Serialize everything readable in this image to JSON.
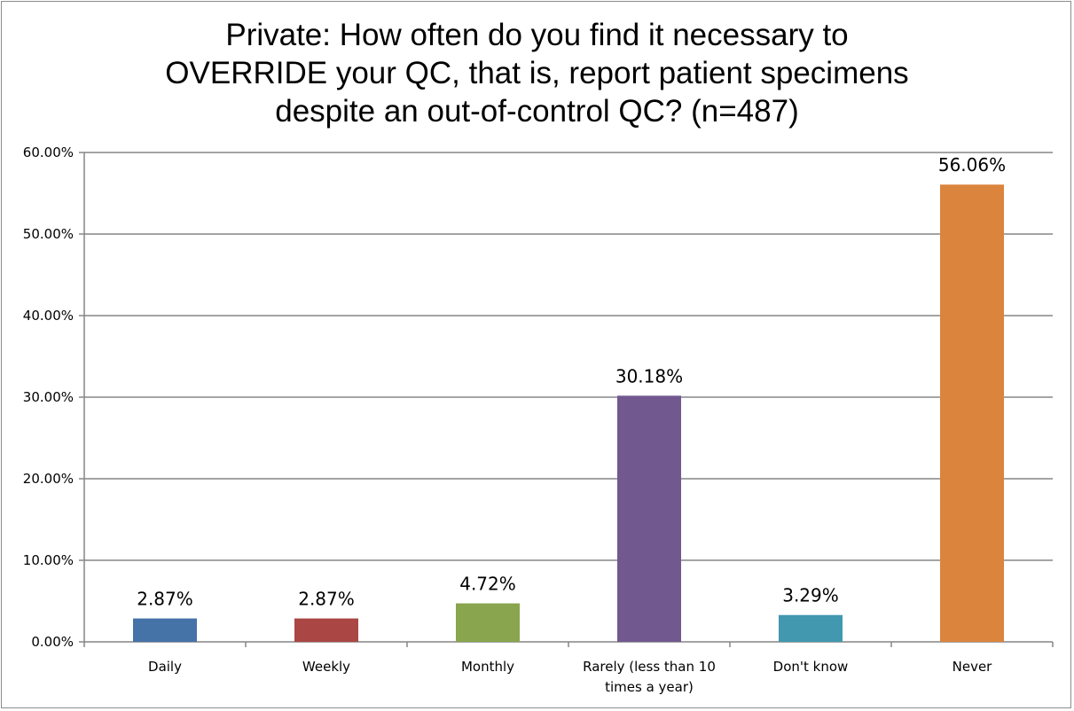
{
  "chart_data": {
    "type": "bar",
    "title": "Private: How often do you find it necessary to OVERRIDE your QC, that is, report patient specimens despite an out-of-control QC? (n=487)",
    "title_lines": [
      "Private: How often do you find it necessary to",
      "OVERRIDE your QC, that is, report patient specimens",
      "despite an out-of-control QC? (n=487)"
    ],
    "categories": [
      "Daily",
      "Weekly",
      "Monthly",
      "Rarely (less than 10 times a year)",
      "Don't know",
      "Never"
    ],
    "category_lines": [
      [
        "Daily"
      ],
      [
        "Weekly"
      ],
      [
        "Monthly"
      ],
      [
        "Rarely (less than 10",
        "times a year)"
      ],
      [
        "Don't know"
      ],
      [
        "Never"
      ]
    ],
    "values": [
      2.87,
      2.87,
      4.72,
      30.18,
      3.29,
      56.06
    ],
    "data_labels": [
      "2.87%",
      "2.87%",
      "4.72%",
      "30.18%",
      "3.29%",
      "56.06%"
    ],
    "colors": [
      "#4572a7",
      "#aa4643",
      "#89a54e",
      "#71588f",
      "#4198af",
      "#db843d"
    ],
    "ylim": [
      0,
      60
    ],
    "yticks": [
      0,
      10,
      20,
      30,
      40,
      50,
      60
    ],
    "ytick_labels": [
      "0.00%",
      "10.00%",
      "20.00%",
      "30.00%",
      "40.00%",
      "50.00%",
      "60.00%"
    ],
    "xlabel": "",
    "ylabel": "",
    "grid": true,
    "legend": "none"
  }
}
